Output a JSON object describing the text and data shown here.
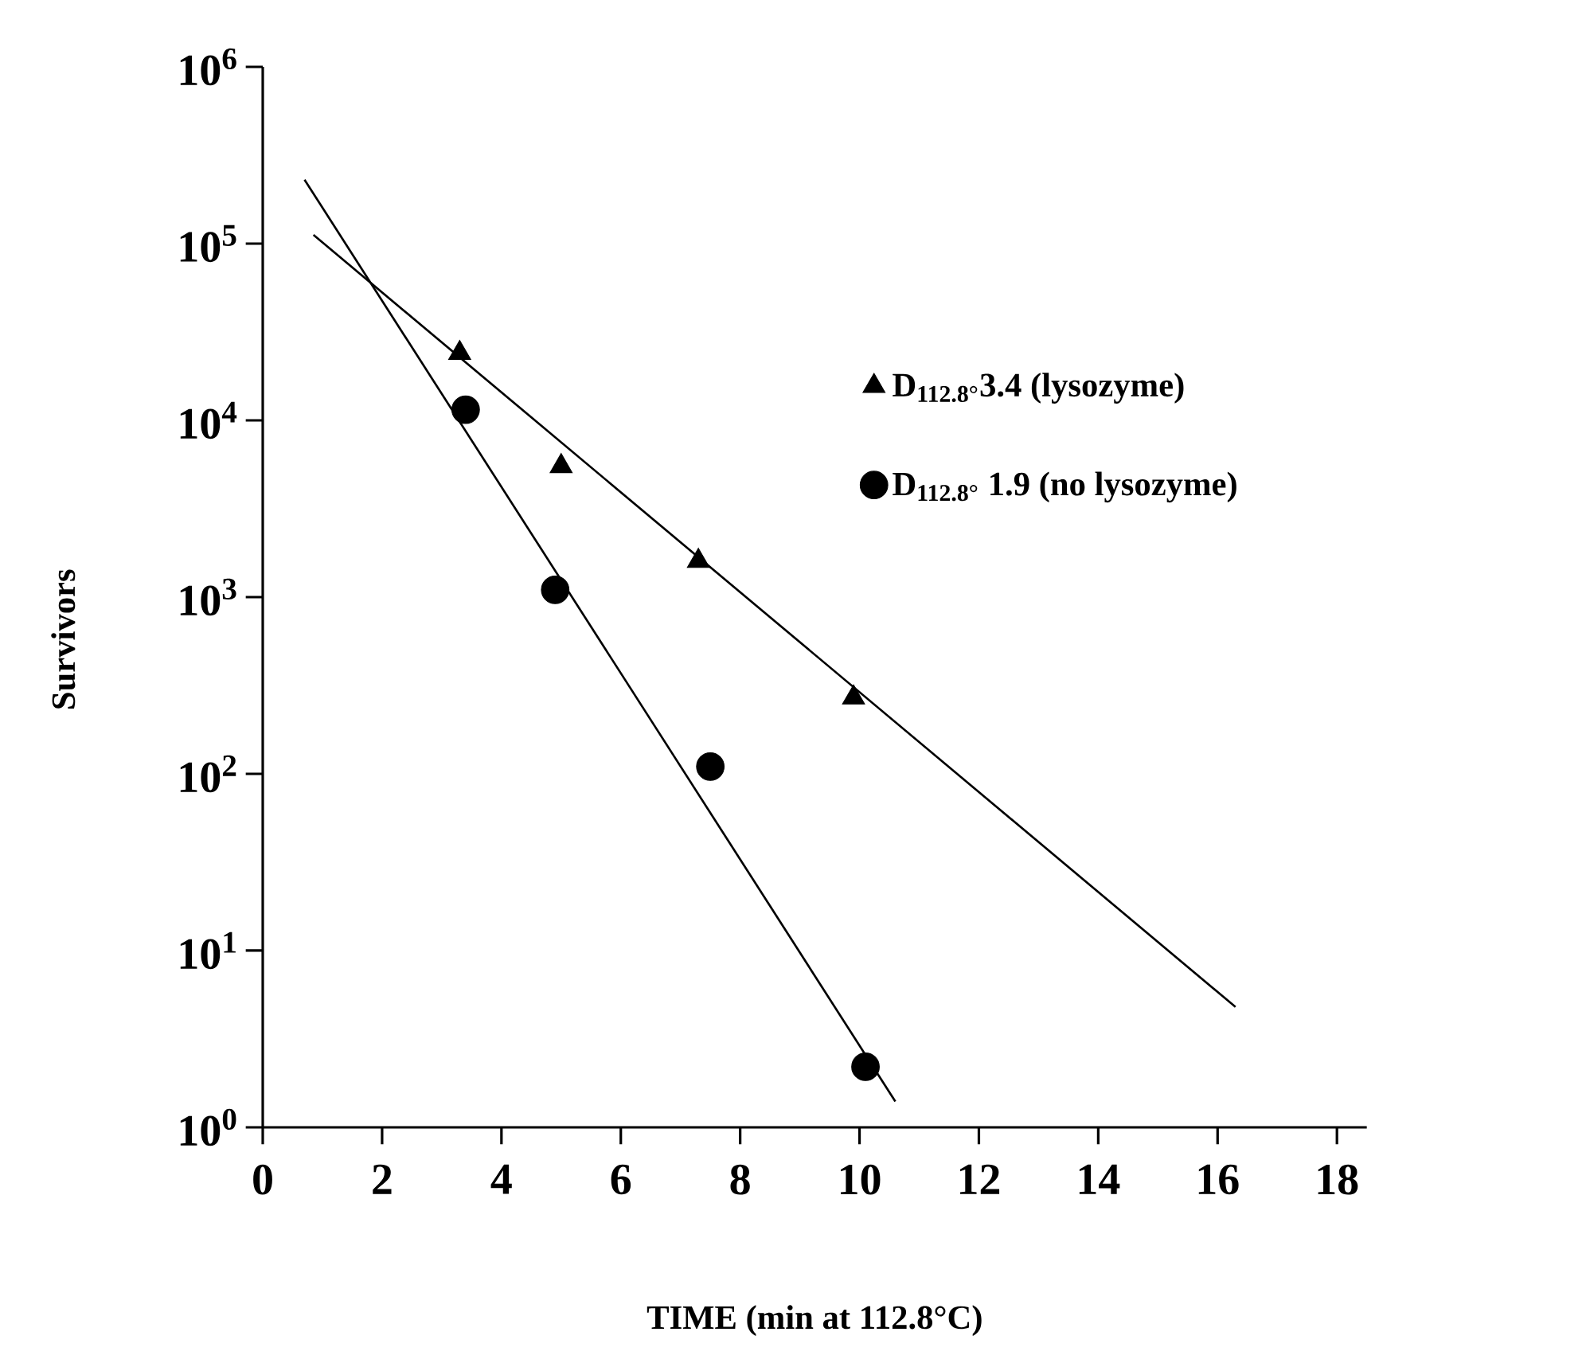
{
  "chart_data": {
    "type": "scatter",
    "xlabel": "TIME (min at 112.8°C)",
    "ylabel": "Survivors",
    "log": "y",
    "xlim": [
      0,
      18.5
    ],
    "xticks": [
      0,
      2,
      4,
      6,
      8,
      10,
      12,
      14,
      16,
      18
    ],
    "ylim": [
      1,
      1000000
    ],
    "yticks": [
      {
        "value": 1,
        "label": "10$^{0}$"
      },
      {
        "value": 10,
        "label": "10$^{1}$"
      },
      {
        "value": 100,
        "label": "10$^{2}$"
      },
      {
        "value": 1000,
        "label": "10$^{3}$"
      },
      {
        "value": 10000,
        "label": "10$^{4}$"
      },
      {
        "value": 100000,
        "label": "10$^{5}$"
      },
      {
        "value": 1000000,
        "label": "10$^{6}$"
      }
    ],
    "legend": "right",
    "series": [
      {
        "name": "D$_{112.8°}$3.4 (lysozyme)",
        "color": "#000000",
        "marker": "triangle",
        "x": [
          3.3,
          5.0,
          7.3,
          9.9
        ],
        "values": [
          24000,
          5500,
          1600,
          270
        ]
      },
      {
        "name": "D$_{112.8°}$ 1.9 (no lysozyme)",
        "color": "#000000",
        "marker": "circle",
        "x": [
          3.4,
          4.9,
          7.5,
          10.1
        ],
        "values": [
          11500,
          1100,
          110,
          2.2
        ]
      },
      {
        "type": "line",
        "color": "#000000",
        "marker": "none",
        "x": [
          0.85,
          16.3
        ],
        "values": [
          112000,
          4.8
        ]
      },
      {
        "type": "line",
        "color": "#000000",
        "marker": "none",
        "x": [
          0.7,
          10.6
        ],
        "values": [
          230000,
          1.4
        ]
      }
    ]
  }
}
